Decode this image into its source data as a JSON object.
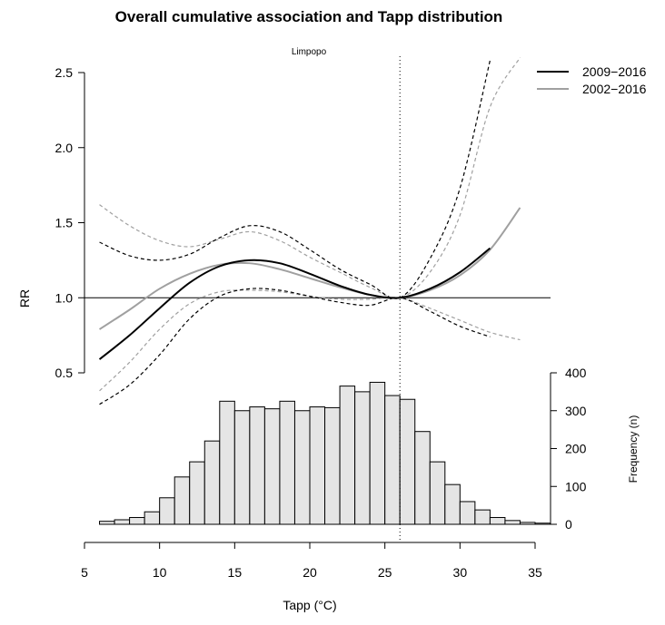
{
  "chart_data": {
    "type": "line",
    "title": "Overall cumulative association and Tapp distribution",
    "subtitle": "Limpopo",
    "xlabel": "Tapp (°C)",
    "ylabel": "RR",
    "y2label": "Frequency (n)",
    "xlim": [
      5,
      35
    ],
    "ylim": [
      0.4,
      2.55
    ],
    "y2lim": [
      0,
      400
    ],
    "x_ticks": [
      "5",
      "10",
      "15",
      "20",
      "25",
      "30",
      "35"
    ],
    "y_ticks": [
      "0.5",
      "1.0",
      "1.5",
      "2.0",
      "2.5"
    ],
    "y2_ticks": [
      "0",
      "100",
      "200",
      "300",
      "400"
    ],
    "reference_value": 26,
    "legend_placement": "top-right",
    "colors": {
      "series_2009_2016": "#000000",
      "series_2002_2016": "#a0a0a0",
      "hist_fill": "#e5e5e5"
    },
    "series": [
      {
        "name": "2009−2016",
        "color": "#000000",
        "x": [
          6,
          8,
          10,
          12,
          14,
          16,
          18,
          20,
          22,
          24,
          26,
          28,
          30,
          32
        ],
        "rr": [
          0.59,
          0.75,
          0.93,
          1.1,
          1.21,
          1.25,
          1.23,
          1.16,
          1.08,
          1.02,
          1.0,
          1.06,
          1.17,
          1.33
        ],
        "lower": [
          0.29,
          0.42,
          0.62,
          0.86,
          1.01,
          1.06,
          1.05,
          1.01,
          0.97,
          0.95,
          1.0,
          0.91,
          0.81,
          0.74
        ],
        "upper": [
          1.37,
          1.28,
          1.25,
          1.29,
          1.4,
          1.48,
          1.44,
          1.32,
          1.19,
          1.09,
          1.0,
          1.26,
          1.73,
          2.58
        ]
      },
      {
        "name": "2002−2016",
        "color": "#a0a0a0",
        "x": [
          6,
          8,
          10,
          12,
          14,
          16,
          18,
          20,
          22,
          24,
          26,
          28,
          30,
          32,
          34
        ],
        "rr": [
          0.79,
          0.92,
          1.06,
          1.16,
          1.22,
          1.23,
          1.19,
          1.13,
          1.07,
          1.02,
          1.0,
          1.05,
          1.15,
          1.32,
          1.6
        ],
        "lower": [
          0.38,
          0.57,
          0.79,
          0.96,
          1.04,
          1.05,
          1.04,
          1.01,
          0.99,
          0.99,
          1.0,
          0.93,
          0.85,
          0.77,
          0.72
        ],
        "upper": [
          1.62,
          1.48,
          1.38,
          1.34,
          1.39,
          1.44,
          1.38,
          1.27,
          1.17,
          1.07,
          1.0,
          1.17,
          1.55,
          2.27,
          2.6
        ]
      }
    ],
    "histogram": {
      "bin_start": 6,
      "bin_width": 1,
      "counts": [
        8,
        12,
        18,
        33,
        70,
        125,
        165,
        220,
        325,
        300,
        310,
        305,
        325,
        300,
        310,
        308,
        365,
        350,
        375,
        340,
        330,
        245,
        165,
        105,
        60,
        38,
        18,
        10,
        5,
        3
      ]
    }
  }
}
